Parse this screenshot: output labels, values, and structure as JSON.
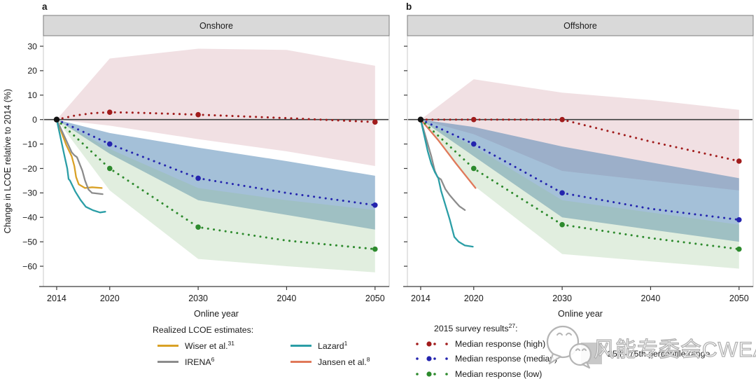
{
  "figure_title": "",
  "watermark": {
    "text": "风能专委会CWEA"
  },
  "legend_realized": {
    "title": "Realized LCOE estimates:",
    "items": [
      {
        "label": "Wiser et al.",
        "sup": "31",
        "color": "#D9A126"
      },
      {
        "label": "IRENA",
        "sup": "6",
        "color": "#8C8C8C"
      },
      {
        "label": "Lazard",
        "sup": "1",
        "color": "#2B9EA6"
      },
      {
        "label": "Jansen et al.",
        "sup": "8",
        "color": "#E0795A"
      }
    ]
  },
  "legend_survey": {
    "title": "2015 survey results",
    "title_sup": "27",
    "title_suffix": ":",
    "items": [
      {
        "label": "Median response (high)",
        "color": "#A11C1C"
      },
      {
        "label": "Median response (median)",
        "color": "#2424AE"
      },
      {
        "label": "Median response (low)",
        "color": "#2D8A2D"
      }
    ]
  },
  "legend_range": {
    "label": "25th–75th percentile range",
    "swatch_color": "#C8C8C8"
  },
  "chart_data": [
    {
      "type": "line",
      "panel_label": "a",
      "title": "Onshore",
      "xlabel": "Online year",
      "ylabel": "Change in LCOE relative to 2014 (%)",
      "x_ticks": [
        2014,
        2020,
        2030,
        2040,
        2050
      ],
      "y_ticks": [
        30,
        20,
        10,
        0,
        -10,
        -20,
        -30,
        -40,
        -50,
        -60
      ],
      "xlim": [
        2012.5,
        2051.6
      ],
      "ylim": [
        -68.3,
        34.3
      ],
      "show_y_tick_labels": true,
      "baseline_point": {
        "x": 2014,
        "y": 0
      },
      "bands": [
        {
          "name": "high 25th-75th percentile",
          "color": "rgba(193,115,126,0.22)",
          "x": [
            2014,
            2020,
            2030,
            2040,
            2050
          ],
          "upper": [
            0,
            25,
            29,
            28.5,
            22
          ],
          "lower": [
            0,
            -2.5,
            -8,
            -13,
            -19
          ]
        },
        {
          "name": "median 25th-75th percentile",
          "color": "rgba(53,115,168,0.45)",
          "x": [
            2014,
            2020,
            2030,
            2040,
            2050
          ],
          "upper": [
            0,
            -5.5,
            -11.5,
            -17,
            -23
          ],
          "lower": [
            0,
            -14,
            -33,
            -39,
            -45
          ]
        },
        {
          "name": "low 25th-75th percentile",
          "color": "rgba(147,195,139,0.28)",
          "x": [
            2014,
            2020,
            2030,
            2040,
            2050
          ],
          "upper": [
            0,
            -12,
            -28,
            -33,
            -37
          ],
          "lower": [
            0,
            -29,
            -57,
            -60,
            -62.5
          ]
        }
      ],
      "survey_series": [
        {
          "name": "Median response (high)",
          "color": "#A11C1C",
          "x": [
            2014,
            2016,
            2018,
            2020,
            2023,
            2026,
            2030,
            2035,
            2040,
            2045,
            2050
          ],
          "y": [
            0,
            1.6,
            2.6,
            3,
            2.8,
            2.5,
            2,
            1.3,
            0.6,
            -0.2,
            -1
          ],
          "markers": {
            "x": [
              2020,
              2030,
              2050
            ],
            "y": [
              3,
              2,
              -1
            ]
          }
        },
        {
          "name": "Median response (median)",
          "color": "#2424AE",
          "x": [
            2014,
            2020,
            2030,
            2040,
            2050
          ],
          "y": [
            0,
            -10,
            -24,
            -30,
            -35
          ],
          "markers": {
            "x": [
              2020,
              2030,
              2050
            ],
            "y": [
              -10,
              -24,
              -35
            ]
          }
        },
        {
          "name": "Median response (low)",
          "color": "#2D8A2D",
          "x": [
            2014,
            2020,
            2030,
            2040,
            2050
          ],
          "y": [
            0,
            -20,
            -44,
            -49.5,
            -53
          ],
          "markers": {
            "x": [
              2020,
              2030,
              2050
            ],
            "y": [
              -20,
              -44,
              -53
            ]
          }
        }
      ],
      "realized_series": [
        {
          "name": "Wiser et al.",
          "color": "#D9A126",
          "x": [
            2014,
            2015.1,
            2015.7,
            2016,
            2016.2,
            2016.5,
            2017.2,
            2018,
            2019.1
          ],
          "y": [
            0,
            -10.5,
            -15,
            -19,
            -23.5,
            -26.5,
            -28,
            -27.7,
            -28
          ]
        },
        {
          "name": "IRENA",
          "color": "#8C8C8C",
          "x": [
            2014,
            2015.7,
            2016,
            2016.3,
            2016.9,
            2017.2,
            2017.6,
            2018,
            2019.2
          ],
          "y": [
            0,
            -13.4,
            -14.6,
            -15.4,
            -20.9,
            -24.9,
            -28.6,
            -30,
            -30.5
          ]
        },
        {
          "name": "Lazard",
          "color": "#2B9EA6",
          "x": [
            2014,
            2014.9,
            2015.2,
            2015.35,
            2015.5,
            2016.1,
            2016.7,
            2017.3,
            2018.1,
            2018.9,
            2019.5
          ],
          "y": [
            0,
            -15.1,
            -20,
            -24.3,
            -24.9,
            -29.4,
            -32.9,
            -35.7,
            -37.1,
            -38,
            -37.7
          ]
        }
      ]
    },
    {
      "type": "line",
      "panel_label": "b",
      "title": "Offshore",
      "xlabel": "Online year",
      "ylabel": "",
      "x_ticks": [
        2014,
        2020,
        2030,
        2040,
        2050
      ],
      "y_ticks": [
        30,
        20,
        10,
        0,
        -10,
        -20,
        -30,
        -40,
        -50,
        -60
      ],
      "xlim": [
        2012.5,
        2051.6
      ],
      "ylim": [
        -68.3,
        34.3
      ],
      "show_y_tick_labels": false,
      "baseline_point": {
        "x": 2014,
        "y": 0
      },
      "bands": [
        {
          "name": "high 25th-75th percentile",
          "color": "rgba(193,115,126,0.22)",
          "x": [
            2014,
            2020,
            2030,
            2040,
            2050
          ],
          "upper": [
            0,
            16.5,
            11,
            8,
            4
          ],
          "lower": [
            0,
            -6,
            -21,
            -25,
            -29
          ]
        },
        {
          "name": "median 25th-75th percentile",
          "color": "rgba(53,115,168,0.45)",
          "x": [
            2014,
            2020,
            2030,
            2040,
            2050
          ],
          "upper": [
            0,
            -3,
            -11,
            -17.5,
            -24
          ],
          "lower": [
            0,
            -15,
            -40,
            -45,
            -50
          ]
        },
        {
          "name": "low 25th-75th percentile",
          "color": "rgba(147,195,139,0.28)",
          "x": [
            2014,
            2020,
            2030,
            2040,
            2050
          ],
          "upper": [
            0,
            -11,
            -33,
            -38,
            -43
          ],
          "lower": [
            0,
            -27,
            -55,
            -58,
            -61
          ]
        }
      ],
      "survey_series": [
        {
          "name": "Median response (high)",
          "color": "#A11C1C",
          "x": [
            2014,
            2020,
            2030,
            2035,
            2040,
            2045,
            2050
          ],
          "y": [
            0,
            0,
            0,
            -4.5,
            -9,
            -13,
            -17
          ],
          "markers": {
            "x": [
              2020,
              2030,
              2050
            ],
            "y": [
              0,
              0,
              -17
            ]
          }
        },
        {
          "name": "Median response (median)",
          "color": "#2424AE",
          "x": [
            2014,
            2020,
            2030,
            2040,
            2050
          ],
          "y": [
            0,
            -10,
            -30,
            -36.5,
            -41
          ],
          "markers": {
            "x": [
              2020,
              2030,
              2050
            ],
            "y": [
              -10,
              -30,
              -41
            ]
          }
        },
        {
          "name": "Median response (low)",
          "color": "#2D8A2D",
          "x": [
            2014,
            2020,
            2030,
            2040,
            2050
          ],
          "y": [
            0,
            -20,
            -43,
            -48.5,
            -53
          ],
          "markers": {
            "x": [
              2020,
              2030,
              2050
            ],
            "y": [
              -20,
              -43,
              -53
            ]
          }
        }
      ],
      "realized_series": [
        {
          "name": "IRENA",
          "color": "#8C8C8C",
          "x": [
            2014,
            2015.2,
            2015.6,
            2015.9,
            2016.3,
            2016.8,
            2017.3,
            2017.9,
            2018.4,
            2019
          ],
          "y": [
            0,
            -15,
            -21,
            -23.5,
            -24.5,
            -28.5,
            -31,
            -33.5,
            -35.5,
            -37
          ]
        },
        {
          "name": "Lazard",
          "color": "#2B9EA6",
          "x": [
            2014,
            2014.8,
            2015.2,
            2015.6,
            2016,
            2016.3,
            2016.8,
            2017.3,
            2017.8,
            2018.3,
            2019,
            2019.9
          ],
          "y": [
            0,
            -13,
            -18,
            -21.5,
            -24,
            -29,
            -35,
            -41,
            -48,
            -50,
            -51.5,
            -52
          ]
        },
        {
          "name": "Jansen et al.",
          "color": "#E0795A",
          "x": [
            2014,
            2016,
            2018,
            2020.2
          ],
          "y": [
            0,
            -8.5,
            -18,
            -28
          ]
        }
      ]
    }
  ]
}
